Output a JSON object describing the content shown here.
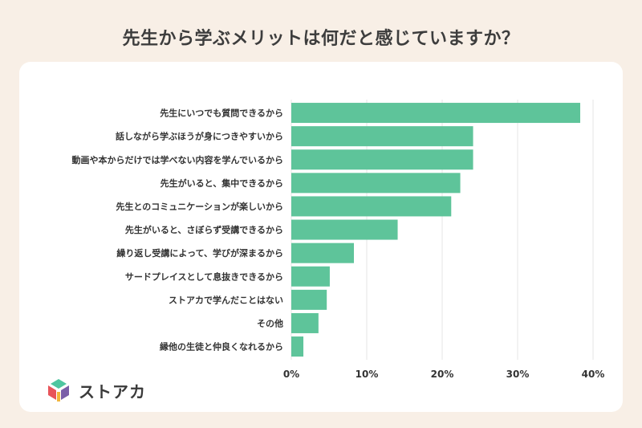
{
  "page": {
    "title": "先生から学ぶメリットは何だと感じていますか？"
  },
  "brand": {
    "name": "ストアカ",
    "logo_colors": [
      "#e8545a",
      "#4fc6a0",
      "#f2b63c",
      "#7a5ea8"
    ]
  },
  "colors": {
    "bar": "#5ec49a",
    "grid": "#e6e6e6",
    "text": "#333333"
  },
  "chart_data": {
    "type": "bar",
    "orientation": "horizontal",
    "title": "",
    "xlabel": "",
    "ylabel": "",
    "xlim": [
      0,
      40
    ],
    "unit": "%",
    "categories": [
      "先生にいつでも質問できるから",
      "話しながら学ぶほうが身につきやすいから",
      "動画や本からだけでは学べない内容を学んでいるから",
      "先生がいると、集中できるから",
      "先生とのコミュニケーションが楽しいから",
      "先生がいると、さぼらず受講できるから",
      "繰り返し受講によって、学びが深まるから",
      "サードプレイスとして息抜きできるから",
      "ストアカで学んだことはない",
      "その他",
      "縁他の生徒と仲良くなれるから"
    ],
    "values": [
      38.3,
      24.1,
      24.1,
      22.4,
      21.2,
      14.1,
      8.3,
      5.1,
      4.7,
      3.6,
      1.6
    ],
    "ticks": [
      "0%",
      "10%",
      "20%",
      "30%",
      "40%"
    ],
    "tick_values": [
      0,
      10,
      20,
      30,
      40
    ],
    "grid": true,
    "legend": "none"
  }
}
